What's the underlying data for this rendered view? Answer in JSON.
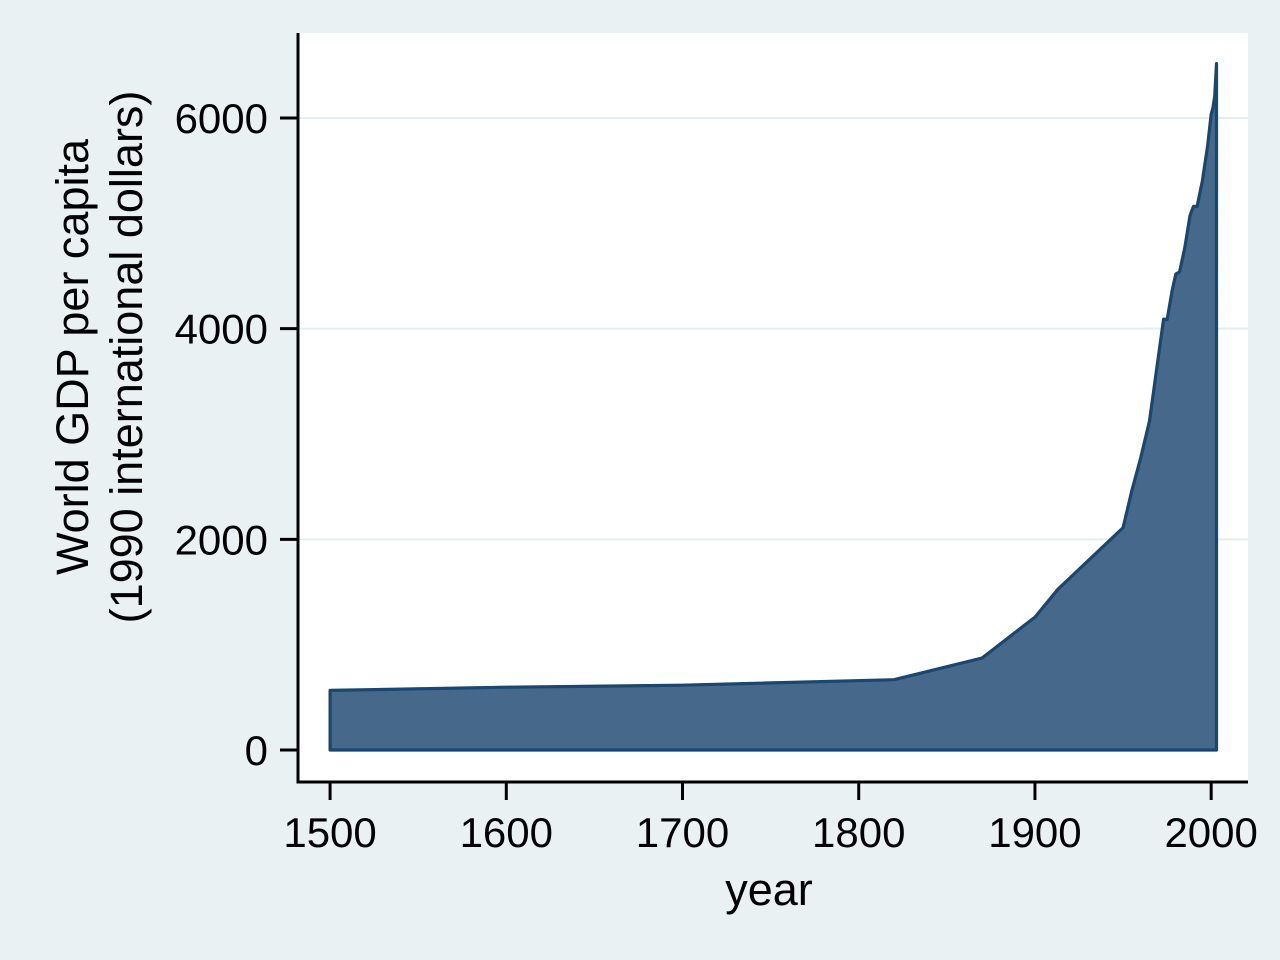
{
  "figure": {
    "background_color": "#eaf1f3",
    "plot_background_color": "#ffffff",
    "grid_color": "#e4edf0",
    "axis_color": "#000000",
    "text_color": "#000000",
    "area_fill_color": "#45688b",
    "area_line_color": "#1a476f"
  },
  "x_axis": {
    "title": "year",
    "ticks": [
      1500,
      1600,
      1700,
      1800,
      1900,
      2000
    ]
  },
  "y_axis": {
    "title_line1": "World GDP per capita",
    "title_line2": "(1990 international dollars)",
    "ticks": [
      0,
      2000,
      4000,
      6000
    ],
    "grid_ticks": [
      2000,
      4000,
      6000
    ]
  },
  "chart_data": {
    "type": "area",
    "title": "",
    "xlabel": "year",
    "ylabel": "World GDP per capita (1990 international dollars)",
    "xlim": [
      1481.8,
      2020.9
    ],
    "ylim": [
      -303.8,
      6806.9
    ],
    "grid": true,
    "legend": false,
    "baseline": 0,
    "series": [
      {
        "name": "World GDP per capita (1990 international dollars)",
        "points": [
          [
            1500,
            566
          ],
          [
            1600,
            596
          ],
          [
            1700,
            615
          ],
          [
            1820,
            667
          ],
          [
            1870,
            873
          ],
          [
            1900,
            1262
          ],
          [
            1913,
            1526
          ],
          [
            1950,
            2111
          ],
          [
            1955,
            2465
          ],
          [
            1960,
            2773
          ],
          [
            1965,
            3123
          ],
          [
            1970,
            3729
          ],
          [
            1973,
            4091
          ],
          [
            1975,
            4086
          ],
          [
            1978,
            4375
          ],
          [
            1980,
            4520
          ],
          [
            1982,
            4537
          ],
          [
            1985,
            4764
          ],
          [
            1988,
            5073
          ],
          [
            1990,
            5162
          ],
          [
            1992,
            5160
          ],
          [
            1995,
            5404
          ],
          [
            1998,
            5735
          ],
          [
            2000,
            6038
          ],
          [
            2001,
            6095
          ],
          [
            2002,
            6205
          ],
          [
            2003,
            6516
          ]
        ]
      }
    ]
  }
}
